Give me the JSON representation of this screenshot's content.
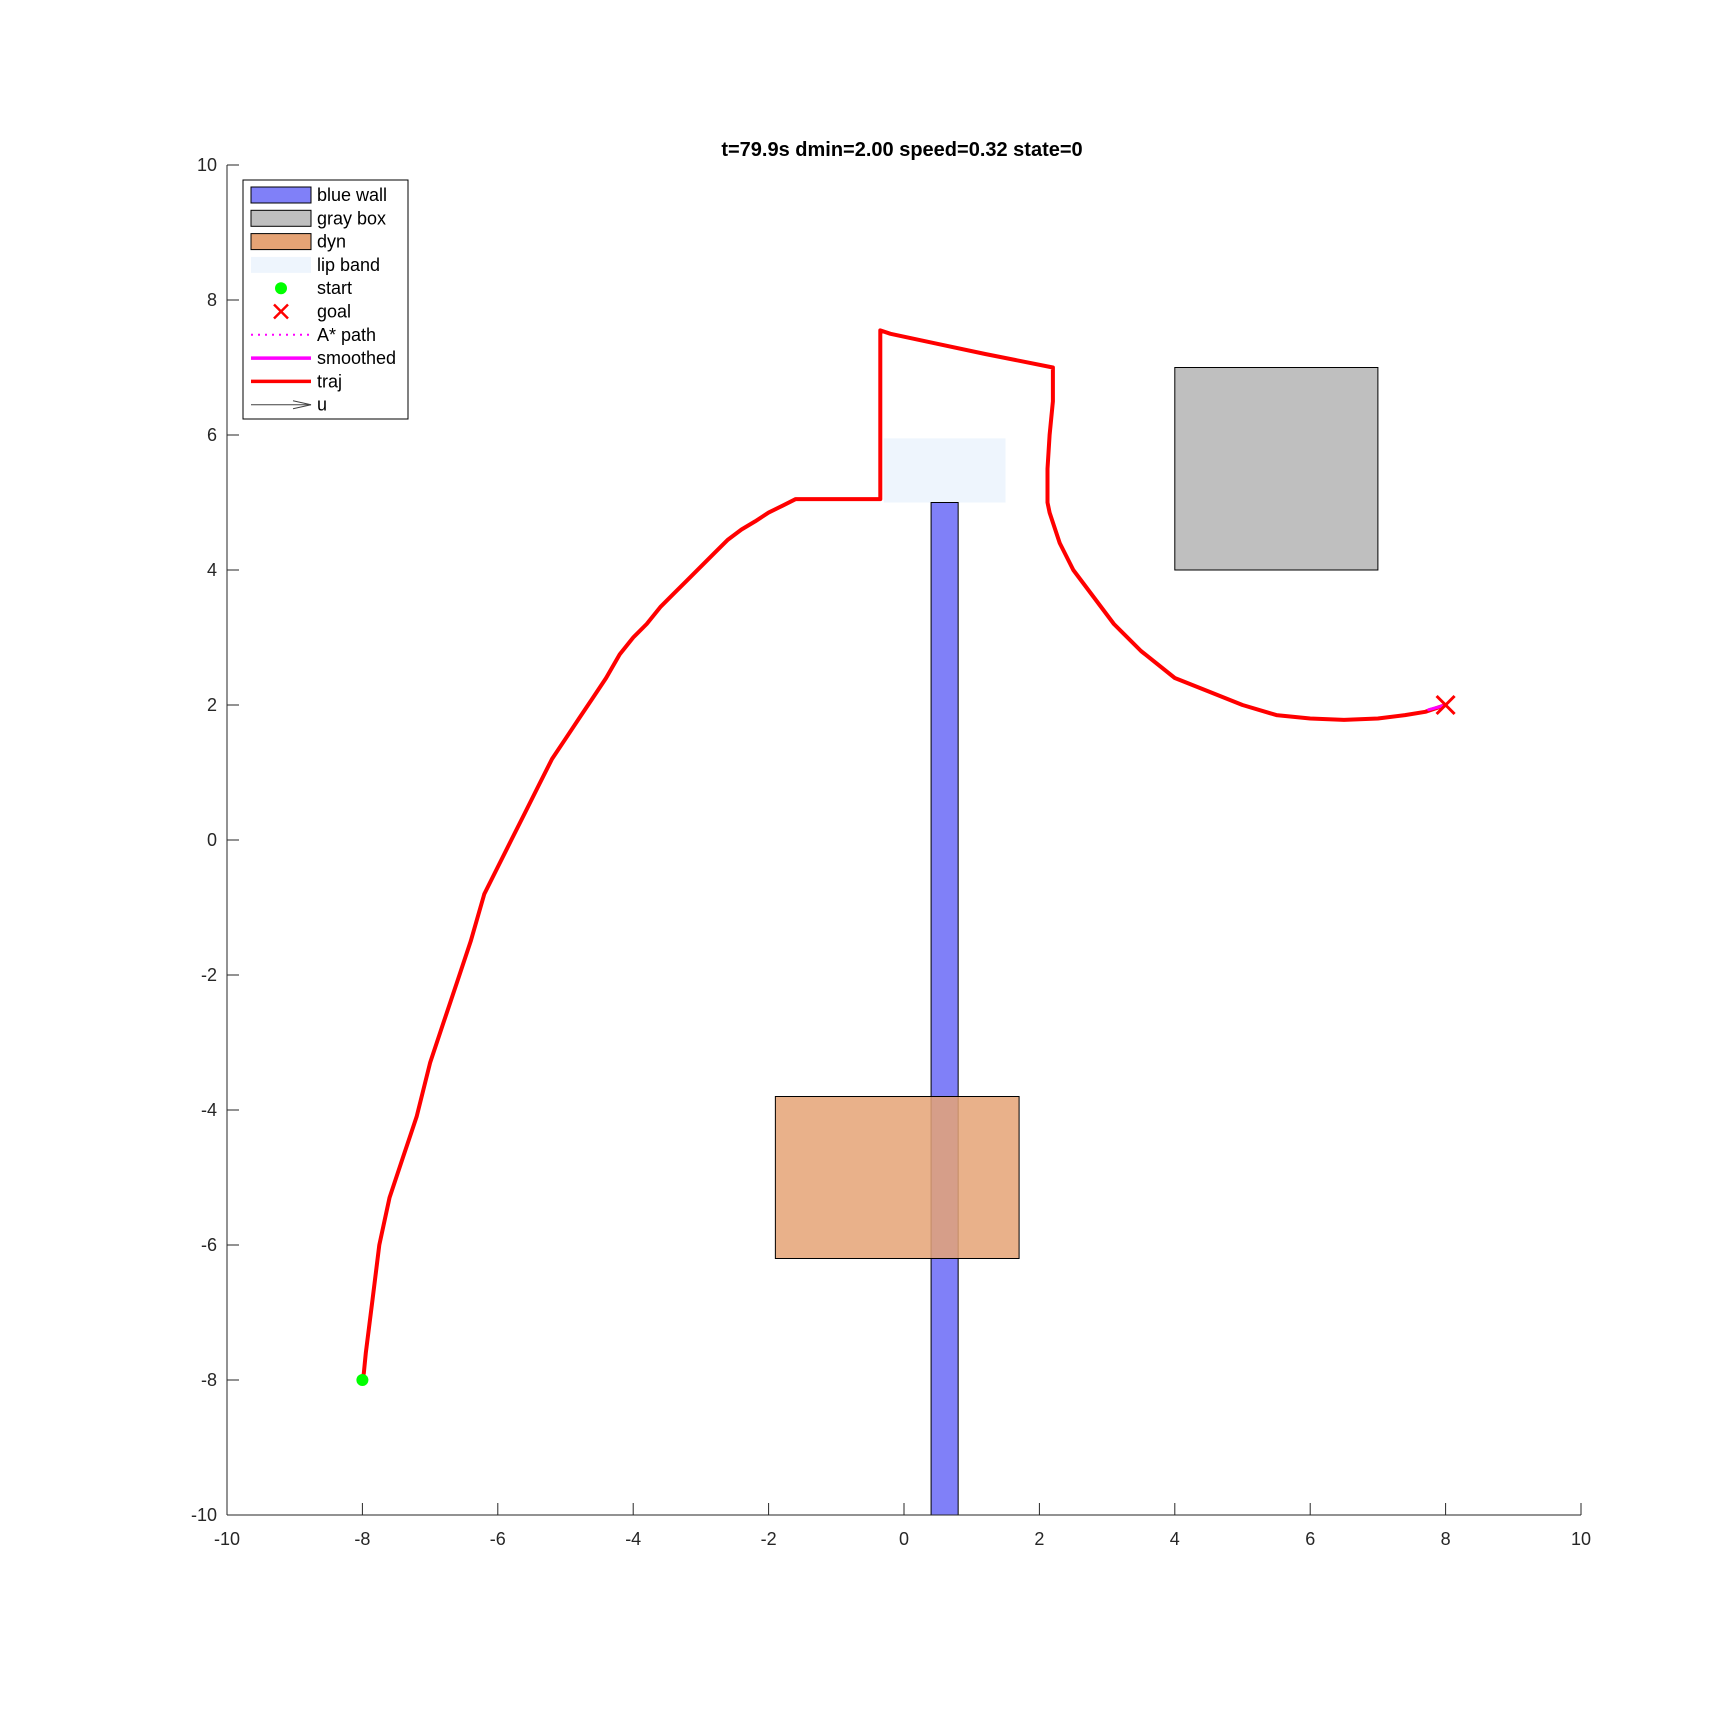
{
  "chart_data": {
    "type": "line",
    "title": "t=79.9s  dmin=2.00  speed=0.32  state=0",
    "xlim": [
      -10,
      10
    ],
    "ylim": [
      -10,
      10
    ],
    "xticks": [
      -10,
      -8,
      -6,
      -4,
      -2,
      0,
      2,
      4,
      6,
      8,
      10
    ],
    "yticks": [
      -10,
      -8,
      -6,
      -4,
      -2,
      0,
      2,
      4,
      6,
      8,
      10
    ],
    "grid": false,
    "legend_position": "top-left",
    "legend": [
      {
        "label": "blue wall",
        "kind": "patch",
        "color": "#8080f8"
      },
      {
        "label": "gray box",
        "kind": "patch",
        "color": "#bfbfbf"
      },
      {
        "label": "dyn",
        "kind": "patch",
        "color": "#e5a375"
      },
      {
        "label": "lip band",
        "kind": "band",
        "color": "#eef5fd"
      },
      {
        "label": "start",
        "kind": "dot",
        "color": "#00ff00"
      },
      {
        "label": "goal",
        "kind": "cross",
        "color": "#ff0000"
      },
      {
        "label": "A* path",
        "kind": "dotted",
        "color": "#ff00ff"
      },
      {
        "label": "smoothed",
        "kind": "line",
        "color": "#ff00ff"
      },
      {
        "label": "traj",
        "kind": "line",
        "color": "#ff0000"
      },
      {
        "label": "u",
        "kind": "arrow",
        "color": "#404040"
      }
    ],
    "obstacles": [
      {
        "name": "blue wall",
        "x": [
          0.4,
          0.8
        ],
        "y": [
          -10,
          5
        ],
        "color": "#8080f8"
      },
      {
        "name": "gray box",
        "x": [
          4,
          7
        ],
        "y": [
          4,
          7
        ],
        "color": "#bfbfbf"
      },
      {
        "name": "dyn",
        "x": [
          -1.9,
          1.7
        ],
        "y": [
          -6.2,
          -3.8
        ],
        "color": "#e5a375"
      },
      {
        "name": "lip band",
        "x": [
          -0.3,
          1.5
        ],
        "y": [
          5,
          5.95
        ],
        "color": "#eef5fd"
      }
    ],
    "start": [
      -8,
      -8
    ],
    "goal": [
      8,
      2
    ],
    "series": [
      {
        "name": "traj",
        "color": "#ff0000",
        "x": [
          -8,
          -7.98,
          -7.95,
          -7.9,
          -7.85,
          -7.75,
          -7.6,
          -7.4,
          -7.2,
          -7.0,
          -6.8,
          -6.6,
          -6.4,
          -6.2,
          -6.0,
          -5.8,
          -5.6,
          -5.4,
          -5.2,
          -5.0,
          -4.8,
          -4.6,
          -4.4,
          -4.2,
          -4.0,
          -3.8,
          -3.6,
          -3.4,
          -3.2,
          -3.0,
          -2.8,
          -2.6,
          -2.4,
          -2.2,
          -2.0,
          -1.8,
          -1.6,
          -1.4,
          -1.2,
          -1.1,
          -0.9,
          -0.7,
          -0.55,
          -0.35,
          -0.35,
          -0.2,
          0.5,
          1.2,
          2.2,
          2.2,
          2.15,
          2.12,
          2.12,
          2.15,
          2.3,
          2.5,
          2.8,
          3.1,
          3.5,
          4.0,
          4.5,
          5.0,
          5.5,
          6.0,
          6.5,
          7.0,
          7.4,
          7.7,
          8.0
        ],
        "y": [
          -8,
          -7.9,
          -7.6,
          -7.2,
          -6.8,
          -6.0,
          -5.3,
          -4.7,
          -4.1,
          -3.3,
          -2.7,
          -2.1,
          -1.5,
          -0.8,
          -0.4,
          0.0,
          0.4,
          0.8,
          1.2,
          1.5,
          1.8,
          2.1,
          2.4,
          2.75,
          3.0,
          3.2,
          3.45,
          3.65,
          3.85,
          4.05,
          4.25,
          4.45,
          4.6,
          4.72,
          4.85,
          4.95,
          5.05,
          5.05,
          5.05,
          5.05,
          5.05,
          5.05,
          5.05,
          5.05,
          7.55,
          7.5,
          7.35,
          7.2,
          7.0,
          6.5,
          6.0,
          5.5,
          5.0,
          4.85,
          4.4,
          4.0,
          3.6,
          3.2,
          2.8,
          2.4,
          2.2,
          2.0,
          1.85,
          1.8,
          1.78,
          1.8,
          1.85,
          1.9,
          2.0
        ]
      },
      {
        "name": "smoothed",
        "color": "#ff00ff",
        "x": [
          7.75,
          7.9,
          8.0
        ],
        "y": [
          1.93,
          1.97,
          2.0
        ]
      }
    ]
  }
}
